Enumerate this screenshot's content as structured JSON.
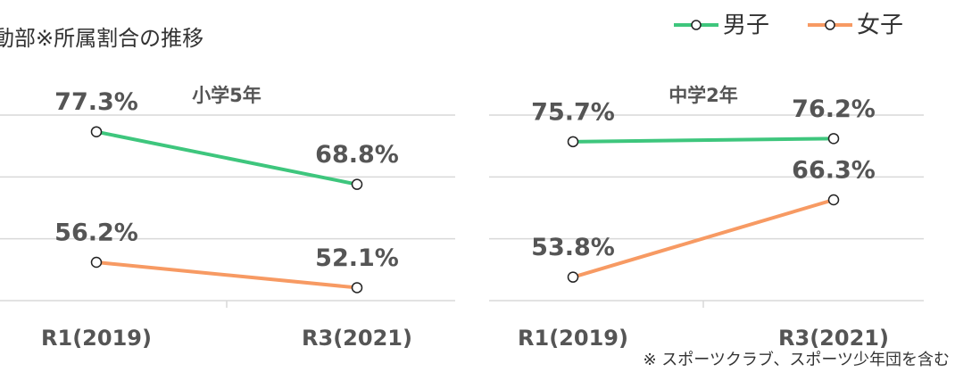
{
  "title": "動部※所属割合の推移",
  "footnote": "※ スポーツクラブ、スポーツ少年団を含む",
  "legend": [
    {
      "name": "男子",
      "color": "#3ec67d"
    },
    {
      "name": "女子",
      "color": "#f79a63"
    }
  ],
  "chart_data": [
    {
      "type": "line",
      "subtitle": "小学5年",
      "categories": [
        "R1(2019)",
        "R3(2021)"
      ],
      "series": [
        {
          "name": "男子",
          "color": "#3ec67d",
          "values": [
            77.3,
            68.8
          ],
          "value_labels": [
            "77.3%",
            "68.8%"
          ]
        },
        {
          "name": "女子",
          "color": "#f79a63",
          "values": [
            56.2,
            52.1
          ],
          "value_labels": [
            "56.2%",
            "52.1%"
          ]
        }
      ],
      "ylim": [
        50,
        80
      ],
      "yticks": [
        50,
        60,
        70,
        80
      ],
      "grid": true
    },
    {
      "type": "line",
      "subtitle": "中学2年",
      "categories": [
        "R1(2019)",
        "R3(2021)"
      ],
      "series": [
        {
          "name": "男子",
          "color": "#3ec67d",
          "values": [
            75.7,
            76.2
          ],
          "value_labels": [
            "75.7%",
            "76.2%"
          ]
        },
        {
          "name": "女子",
          "color": "#f79a63",
          "values": [
            53.8,
            66.3
          ],
          "value_labels": [
            "53.8%",
            "66.3%"
          ]
        }
      ],
      "ylim": [
        50,
        80
      ],
      "yticks": [
        50,
        60,
        70,
        80
      ],
      "grid": true
    }
  ]
}
